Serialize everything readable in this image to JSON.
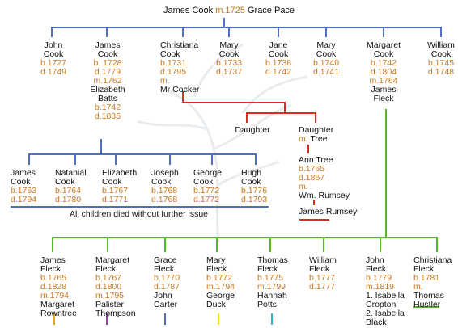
{
  "colors": {
    "blue": "#4f6fc4",
    "red": "#e02a1c",
    "green": "#59b32c",
    "dates": "#c8791c",
    "text": "#111111"
  },
  "root": {
    "father": "James Cook",
    "marriage": "m.1725",
    "mother": "Grace Pace"
  },
  "gen1": [
    {
      "lines": [
        "John",
        "Cook",
        "b.1727",
        "d.1749"
      ],
      "styles": [
        "n",
        "n",
        "d",
        "d"
      ]
    },
    {
      "lines": [
        "James",
        "Cook",
        "b. 1728",
        "d.1779",
        "m.1762",
        "Elizabeth",
        "Batts",
        "b.1742",
        "d.1835"
      ],
      "styles": [
        "n",
        "n",
        "d",
        "d",
        "d",
        "n",
        "n",
        "d",
        "d"
      ]
    },
    {
      "lines": [
        "Christiana",
        "Cook",
        "b.1731",
        "d.1795",
        "m.",
        "Mr Cocker"
      ],
      "styles": [
        "n",
        "n",
        "d",
        "d",
        "d",
        "n"
      ]
    },
    {
      "lines": [
        "Mary",
        "Cook",
        "b.1733",
        "d.1737"
      ],
      "styles": [
        "n",
        "n",
        "d",
        "d"
      ]
    },
    {
      "lines": [
        "Jane",
        "Cook",
        "b.1738",
        "d.1742"
      ],
      "styles": [
        "n",
        "n",
        "d",
        "d"
      ]
    },
    {
      "lines": [
        "Mary",
        "Cook",
        "b.1740",
        "d.1741"
      ],
      "styles": [
        "n",
        "n",
        "d",
        "d"
      ]
    },
    {
      "lines": [
        "Margaret",
        "Cook",
        "b.1742",
        "d.1804",
        "m.1764",
        "James",
        "Fleck"
      ],
      "styles": [
        "n",
        "n",
        "d",
        "d",
        "d",
        "n",
        "n"
      ]
    },
    {
      "lines": [
        "William",
        "Cook",
        "b.1745",
        "d.1748"
      ],
      "styles": [
        "n",
        "n",
        "d",
        "d"
      ]
    }
  ],
  "cocker": {
    "daughter1": "Daughter",
    "daughter2": "Daughter",
    "daughter2_marriage": "m.",
    "daughter2_spouse": "Tree",
    "ann": {
      "lines": [
        "Ann Tree",
        "b.1765",
        "d.1867",
        "m.",
        "Wm. Rumsey"
      ],
      "styles": [
        "n",
        "d",
        "d",
        "d",
        "n"
      ]
    },
    "grandson": "James Rumsey"
  },
  "james_children": [
    {
      "lines": [
        "James",
        "Cook",
        "b.1763",
        "d.1794"
      ],
      "styles": [
        "n",
        "n",
        "d",
        "d"
      ]
    },
    {
      "lines": [
        "Natanial",
        "Cook",
        "b.1764",
        "d.1780"
      ],
      "styles": [
        "n",
        "n",
        "d",
        "d"
      ]
    },
    {
      "lines": [
        "Elizabeth",
        "Cook",
        "b.1767",
        "d.1771"
      ],
      "styles": [
        "n",
        "n",
        "d",
        "d"
      ]
    },
    {
      "lines": [
        "Joseph",
        "Cook",
        "b.1768",
        "d.1768"
      ],
      "styles": [
        "n",
        "n",
        "d",
        "d"
      ]
    },
    {
      "lines": [
        "George",
        "Cook",
        "b.1772",
        "d.1772"
      ],
      "styles": [
        "n",
        "n",
        "d",
        "d"
      ]
    },
    {
      "lines": [
        "Hugh",
        "Cook",
        "b.1776",
        "d.1793"
      ],
      "styles": [
        "n",
        "n",
        "d",
        "d"
      ]
    }
  ],
  "no_issue_note": "All children died without further issue",
  "fleck_children": [
    {
      "lines": [
        "James",
        "Fleck",
        "b.1765",
        "d.1828",
        "m.1794",
        "Margaret",
        "Rowntree"
      ],
      "styles": [
        "n",
        "n",
        "d",
        "d",
        "d",
        "n",
        "n"
      ]
    },
    {
      "lines": [
        "Margaret",
        "Fleck",
        "b.1767",
        "d.1800",
        "m.1795",
        "Palister",
        "Thompson"
      ],
      "styles": [
        "n",
        "n",
        "d",
        "d",
        "d",
        "n",
        "n"
      ]
    },
    {
      "lines": [
        "Grace",
        "Fleck",
        "b.1770",
        "d.1787",
        "John",
        "Carter"
      ],
      "styles": [
        "n",
        "n",
        "d",
        "d",
        "n",
        "n"
      ]
    },
    {
      "lines": [
        "Mary",
        "Fleck",
        "b.1772",
        "m.1794",
        "George",
        "Duck"
      ],
      "styles": [
        "n",
        "n",
        "d",
        "d",
        "n",
        "n"
      ]
    },
    {
      "lines": [
        "Thomas",
        "Fleck",
        "b.1775",
        "m.1799",
        "Hannah",
        "Potts"
      ],
      "styles": [
        "n",
        "n",
        "d",
        "d",
        "n",
        "n"
      ]
    },
    {
      "lines": [
        "William",
        "Fleck",
        "b.1777",
        "d.1777"
      ],
      "styles": [
        "n",
        "n",
        "d",
        "d"
      ]
    },
    {
      "lines": [
        "John",
        "Fleck",
        "b.1779",
        "m.1819",
        "1. Isabella",
        "Cropton",
        "2. Isabella",
        "Black"
      ],
      "styles": [
        "n",
        "n",
        "d",
        "d",
        "n",
        "n",
        "n",
        "n"
      ]
    },
    {
      "lines": [
        "Christiana",
        "Fleck",
        "b.1781",
        "m.",
        "Thomas",
        "Hustler"
      ],
      "styles": [
        "n",
        "n",
        "d",
        "d",
        "n",
        "n"
      ]
    }
  ],
  "descendant_marks": [
    {
      "color": "#e8a31a"
    },
    {
      "color": "#9b3fb8"
    },
    {
      "color": "#4f6fc4"
    },
    {
      "color": "#f0e020"
    },
    {
      "color": "#2bb3c8"
    },
    {
      "color": "#59b32c"
    }
  ]
}
